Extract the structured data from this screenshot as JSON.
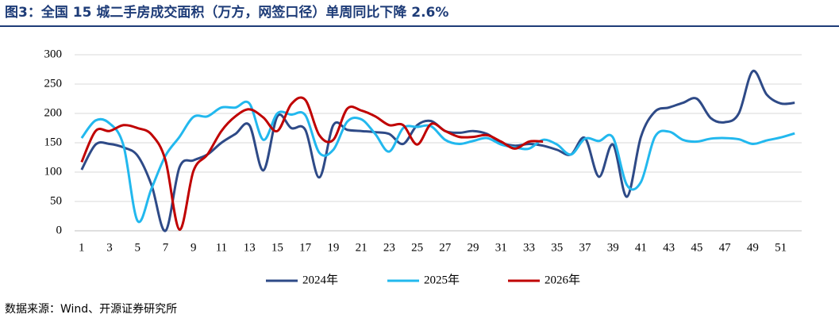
{
  "chart_data": {
    "type": "line",
    "title": "图3：全国 15 城二手房成交面积（万方，网签口径）单周同比下降 2.6%",
    "source": "数据来源：Wind、开源证券研究所",
    "categories": [
      "1",
      null,
      "3",
      null,
      "5",
      null,
      "7",
      null,
      "9",
      null,
      "11",
      null,
      "13",
      null,
      "15",
      null,
      "17",
      null,
      "19",
      null,
      "21",
      null,
      "23",
      null,
      "25",
      null,
      "27",
      null,
      "29",
      null,
      "31",
      null,
      "33",
      null,
      "35",
      null,
      "37",
      null,
      "39",
      null,
      "41",
      null,
      "43",
      null,
      "45",
      null,
      "47",
      null,
      "49",
      null,
      "51",
      null
    ],
    "ylim": [
      0,
      300
    ],
    "yticks": [
      0,
      50,
      100,
      150,
      200,
      250,
      300
    ],
    "grid": true,
    "legend": "bottom",
    "series": [
      {
        "name": "2024年",
        "color": "#2e4a87",
        "values": [
          104,
          147,
          148,
          142,
          128,
          78,
          0,
          108,
          120,
          130,
          150,
          165,
          180,
          103,
          195,
          175,
          172,
          91,
          180,
          172,
          170,
          168,
          165,
          148,
          180,
          187,
          170,
          167,
          170,
          165,
          150,
          145,
          148,
          145,
          138,
          130,
          158,
          92,
          147,
          58,
          160,
          203,
          210,
          218,
          225,
          192,
          185,
          200,
          272,
          232,
          217,
          218
        ]
      },
      {
        "name": "2025年",
        "color": "#22b8ee",
        "values": [
          158,
          188,
          183,
          145,
          17,
          72,
          128,
          160,
          194,
          195,
          210,
          210,
          217,
          155,
          200,
          198,
          197,
          133,
          138,
          186,
          190,
          165,
          135,
          175,
          177,
          178,
          155,
          148,
          153,
          158,
          147,
          142,
          140,
          155,
          147,
          130,
          157,
          153,
          159,
          78,
          83,
          160,
          169,
          155,
          152,
          157,
          158,
          156,
          148,
          154,
          159,
          166
        ]
      },
      {
        "name": "2026年",
        "color": "#c00000",
        "values": [
          117,
          170,
          170,
          180,
          175,
          164,
          120,
          2,
          102,
          130,
          170,
          195,
          207,
          193,
          170,
          216,
          223,
          163,
          155,
          208,
          205,
          195,
          180,
          180,
          147,
          182,
          170,
          160,
          160,
          163,
          152,
          140,
          152,
          152,
          null,
          null,
          null,
          null,
          null,
          null,
          null,
          null,
          null,
          null,
          null,
          null,
          null,
          null,
          null,
          null,
          null,
          null
        ]
      }
    ]
  }
}
